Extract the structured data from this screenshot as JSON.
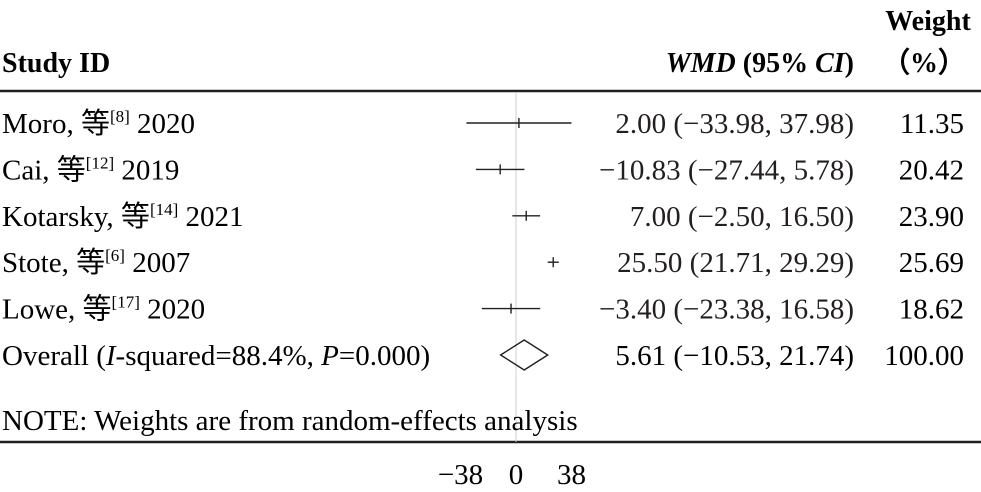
{
  "chart_data": {
    "type": "forest",
    "headers": {
      "study": "Study ID",
      "effect_prefix": "WMD",
      "effect_suffix": "(95%",
      "effect_ci": "CI",
      "effect_close": ")",
      "weight_line1": "Weight",
      "weight_line2": "（%）"
    },
    "studies": [
      {
        "name": "Moro, 等",
        "ref": "[8]",
        "year": "2020",
        "wmd": 2.0,
        "lo": -33.98,
        "hi": 37.98,
        "ci_text": "2.00 (−33.98, 37.98)",
        "weight": "11.35"
      },
      {
        "name": "Cai, 等",
        "ref": "[12]",
        "year": "2019",
        "wmd": -10.83,
        "lo": -27.44,
        "hi": 5.78,
        "ci_text": "−10.83 (−27.44, 5.78)",
        "weight": "20.42"
      },
      {
        "name": "Kotarsky, 等",
        "ref": "[14]",
        "year": "2021",
        "wmd": 7.0,
        "lo": -2.5,
        "hi": 16.5,
        "ci_text": "7.00 (−2.50, 16.50)",
        "weight": "23.90"
      },
      {
        "name": "Stote, 等",
        "ref": "[6]",
        "year": "2007",
        "wmd": 25.5,
        "lo": 21.71,
        "hi": 29.29,
        "ci_text": "25.50 (21.71, 29.29)",
        "weight": "25.69"
      },
      {
        "name": "Lowe, 等",
        "ref": "[17]",
        "year": "2020",
        "wmd": -3.4,
        "lo": -23.38,
        "hi": 16.58,
        "ci_text": "−3.40 (−23.38, 16.58)",
        "weight": "18.62"
      }
    ],
    "overall": {
      "label_prefix": "Overall (",
      "label_i": "I",
      "label_mid": "-squared=88.4%, ",
      "label_p": "P",
      "label_end": "=0.000)",
      "wmd": 5.61,
      "lo": -10.53,
      "hi": 21.74,
      "ci_text": "5.61 (−10.53, 21.74)",
      "weight": "100.00"
    },
    "note": "NOTE: Weights are from random-effects analysis",
    "x_ticks": [
      -38,
      0,
      38
    ],
    "x_tick_labels": [
      "−38",
      "0",
      "38"
    ],
    "null_line": 0,
    "colors": {
      "text": "#231f20",
      "null_line": "#bdbdbd"
    }
  }
}
